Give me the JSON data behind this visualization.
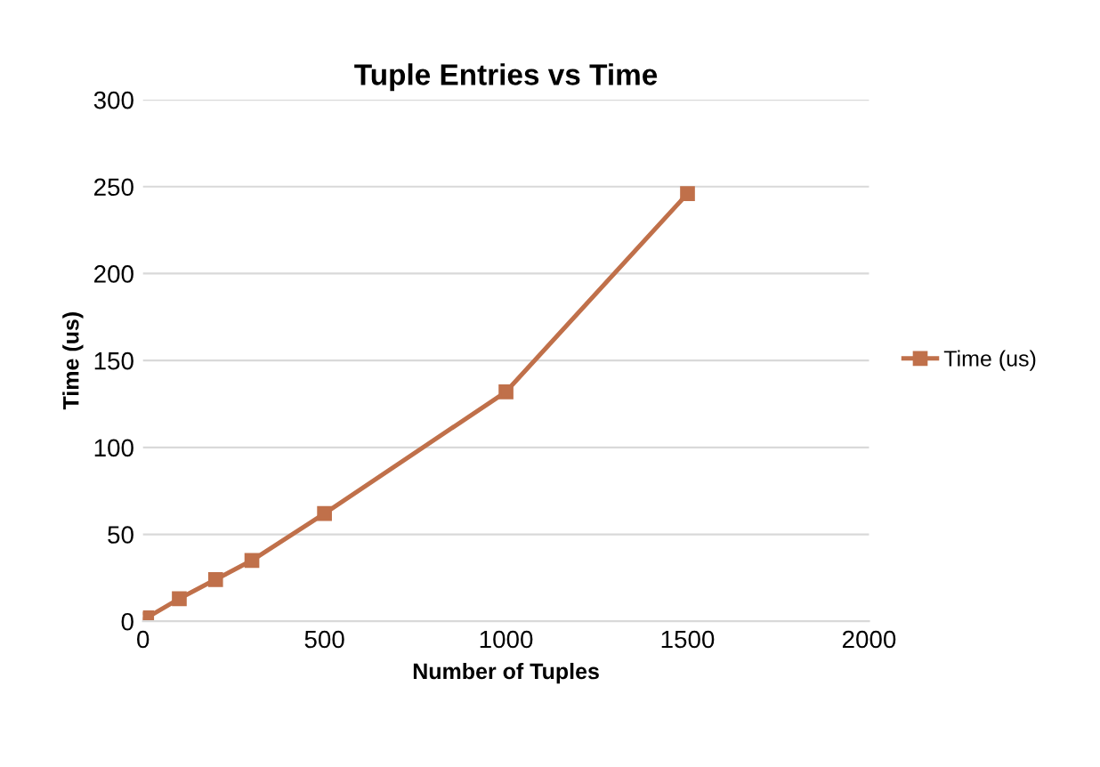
{
  "chart_data": {
    "type": "line",
    "title": "Tuple Entries vs Time",
    "xlabel": "Number of Tuples",
    "ylabel": "Time (us)",
    "x": [
      1,
      10,
      100,
      200,
      300,
      500,
      1000,
      1500
    ],
    "series": [
      {
        "name": "Time (us)",
        "color": "#c0704a",
        "values": [
          1,
          2,
          13,
          24,
          35,
          62,
          132,
          246
        ]
      }
    ],
    "xlim": [
      0,
      2000
    ],
    "xticks": [
      0,
      500,
      1000,
      1500,
      2000
    ],
    "ylim": [
      0,
      300
    ],
    "yticks": [
      0,
      50,
      100,
      150,
      200,
      250,
      300
    ],
    "grid": "y",
    "legend": "right",
    "marker": "square",
    "line_style": "solid"
  }
}
